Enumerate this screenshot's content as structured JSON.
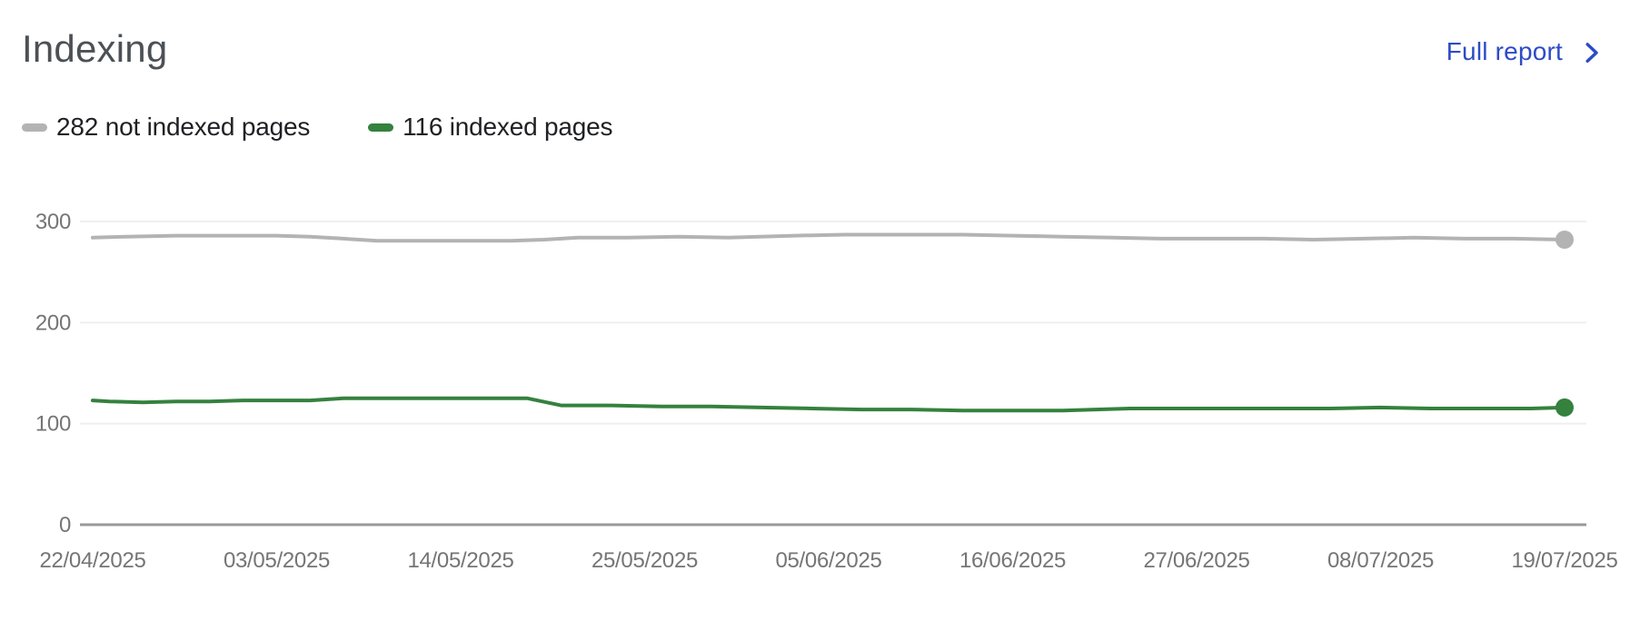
{
  "header": {
    "title": "Indexing",
    "full_report_label": "Full report"
  },
  "legend": [
    {
      "label": "282 not indexed pages",
      "color": "#b3b3b3"
    },
    {
      "label": "116 indexed pages",
      "color": "#35813e"
    }
  ],
  "colors": {
    "link_blue": "#2e4bc6",
    "title_gray": "#4c5156",
    "legend_text": "#202124",
    "axis_label": "#757575",
    "gridline": "#efefef",
    "axis_line": "#999999"
  },
  "chart_data": {
    "type": "line",
    "title": "Indexing",
    "x_tick_labels": [
      "22/04/2025",
      "03/05/2025",
      "14/05/2025",
      "25/05/2025",
      "05/06/2025",
      "16/06/2025",
      "27/06/2025",
      "08/07/2025",
      "19/07/2025"
    ],
    "x_range_days": [
      0,
      88
    ],
    "y_ticks": [
      0,
      100,
      200,
      300
    ],
    "ylim": [
      0,
      300
    ],
    "grid": "horizontal",
    "legend_position": "top-left",
    "series": [
      {
        "name": "282 not indexed pages",
        "current_value": 282,
        "color": "#b3b3b3",
        "points": [
          [
            0,
            284
          ],
          [
            2,
            285
          ],
          [
            5,
            286
          ],
          [
            8,
            286
          ],
          [
            11,
            286
          ],
          [
            13,
            285
          ],
          [
            15,
            283
          ],
          [
            17,
            281
          ],
          [
            21,
            281
          ],
          [
            25,
            281
          ],
          [
            27,
            282
          ],
          [
            29,
            284
          ],
          [
            32,
            284
          ],
          [
            35,
            285
          ],
          [
            38,
            284
          ],
          [
            42,
            286
          ],
          [
            45,
            287
          ],
          [
            48,
            287
          ],
          [
            52,
            287
          ],
          [
            55,
            286
          ],
          [
            58,
            285
          ],
          [
            61,
            284
          ],
          [
            64,
            283
          ],
          [
            67,
            283
          ],
          [
            70,
            283
          ],
          [
            73,
            282
          ],
          [
            76,
            283
          ],
          [
            79,
            284
          ],
          [
            82,
            283
          ],
          [
            85,
            283
          ],
          [
            88,
            282
          ]
        ]
      },
      {
        "name": "116 indexed pages",
        "current_value": 116,
        "color": "#35813e",
        "points": [
          [
            0,
            123
          ],
          [
            1,
            122
          ],
          [
            3,
            121
          ],
          [
            5,
            122
          ],
          [
            7,
            122
          ],
          [
            9,
            123
          ],
          [
            11,
            123
          ],
          [
            13,
            123
          ],
          [
            15,
            125
          ],
          [
            18,
            125
          ],
          [
            21,
            125
          ],
          [
            24,
            125
          ],
          [
            26,
            125
          ],
          [
            28,
            118
          ],
          [
            31,
            118
          ],
          [
            34,
            117
          ],
          [
            37,
            117
          ],
          [
            40,
            116
          ],
          [
            43,
            115
          ],
          [
            46,
            114
          ],
          [
            49,
            114
          ],
          [
            52,
            113
          ],
          [
            55,
            113
          ],
          [
            58,
            113
          ],
          [
            60,
            114
          ],
          [
            62,
            115
          ],
          [
            65,
            115
          ],
          [
            68,
            115
          ],
          [
            71,
            115
          ],
          [
            74,
            115
          ],
          [
            77,
            116
          ],
          [
            80,
            115
          ],
          [
            83,
            115
          ],
          [
            86,
            115
          ],
          [
            88,
            116
          ]
        ]
      }
    ]
  }
}
